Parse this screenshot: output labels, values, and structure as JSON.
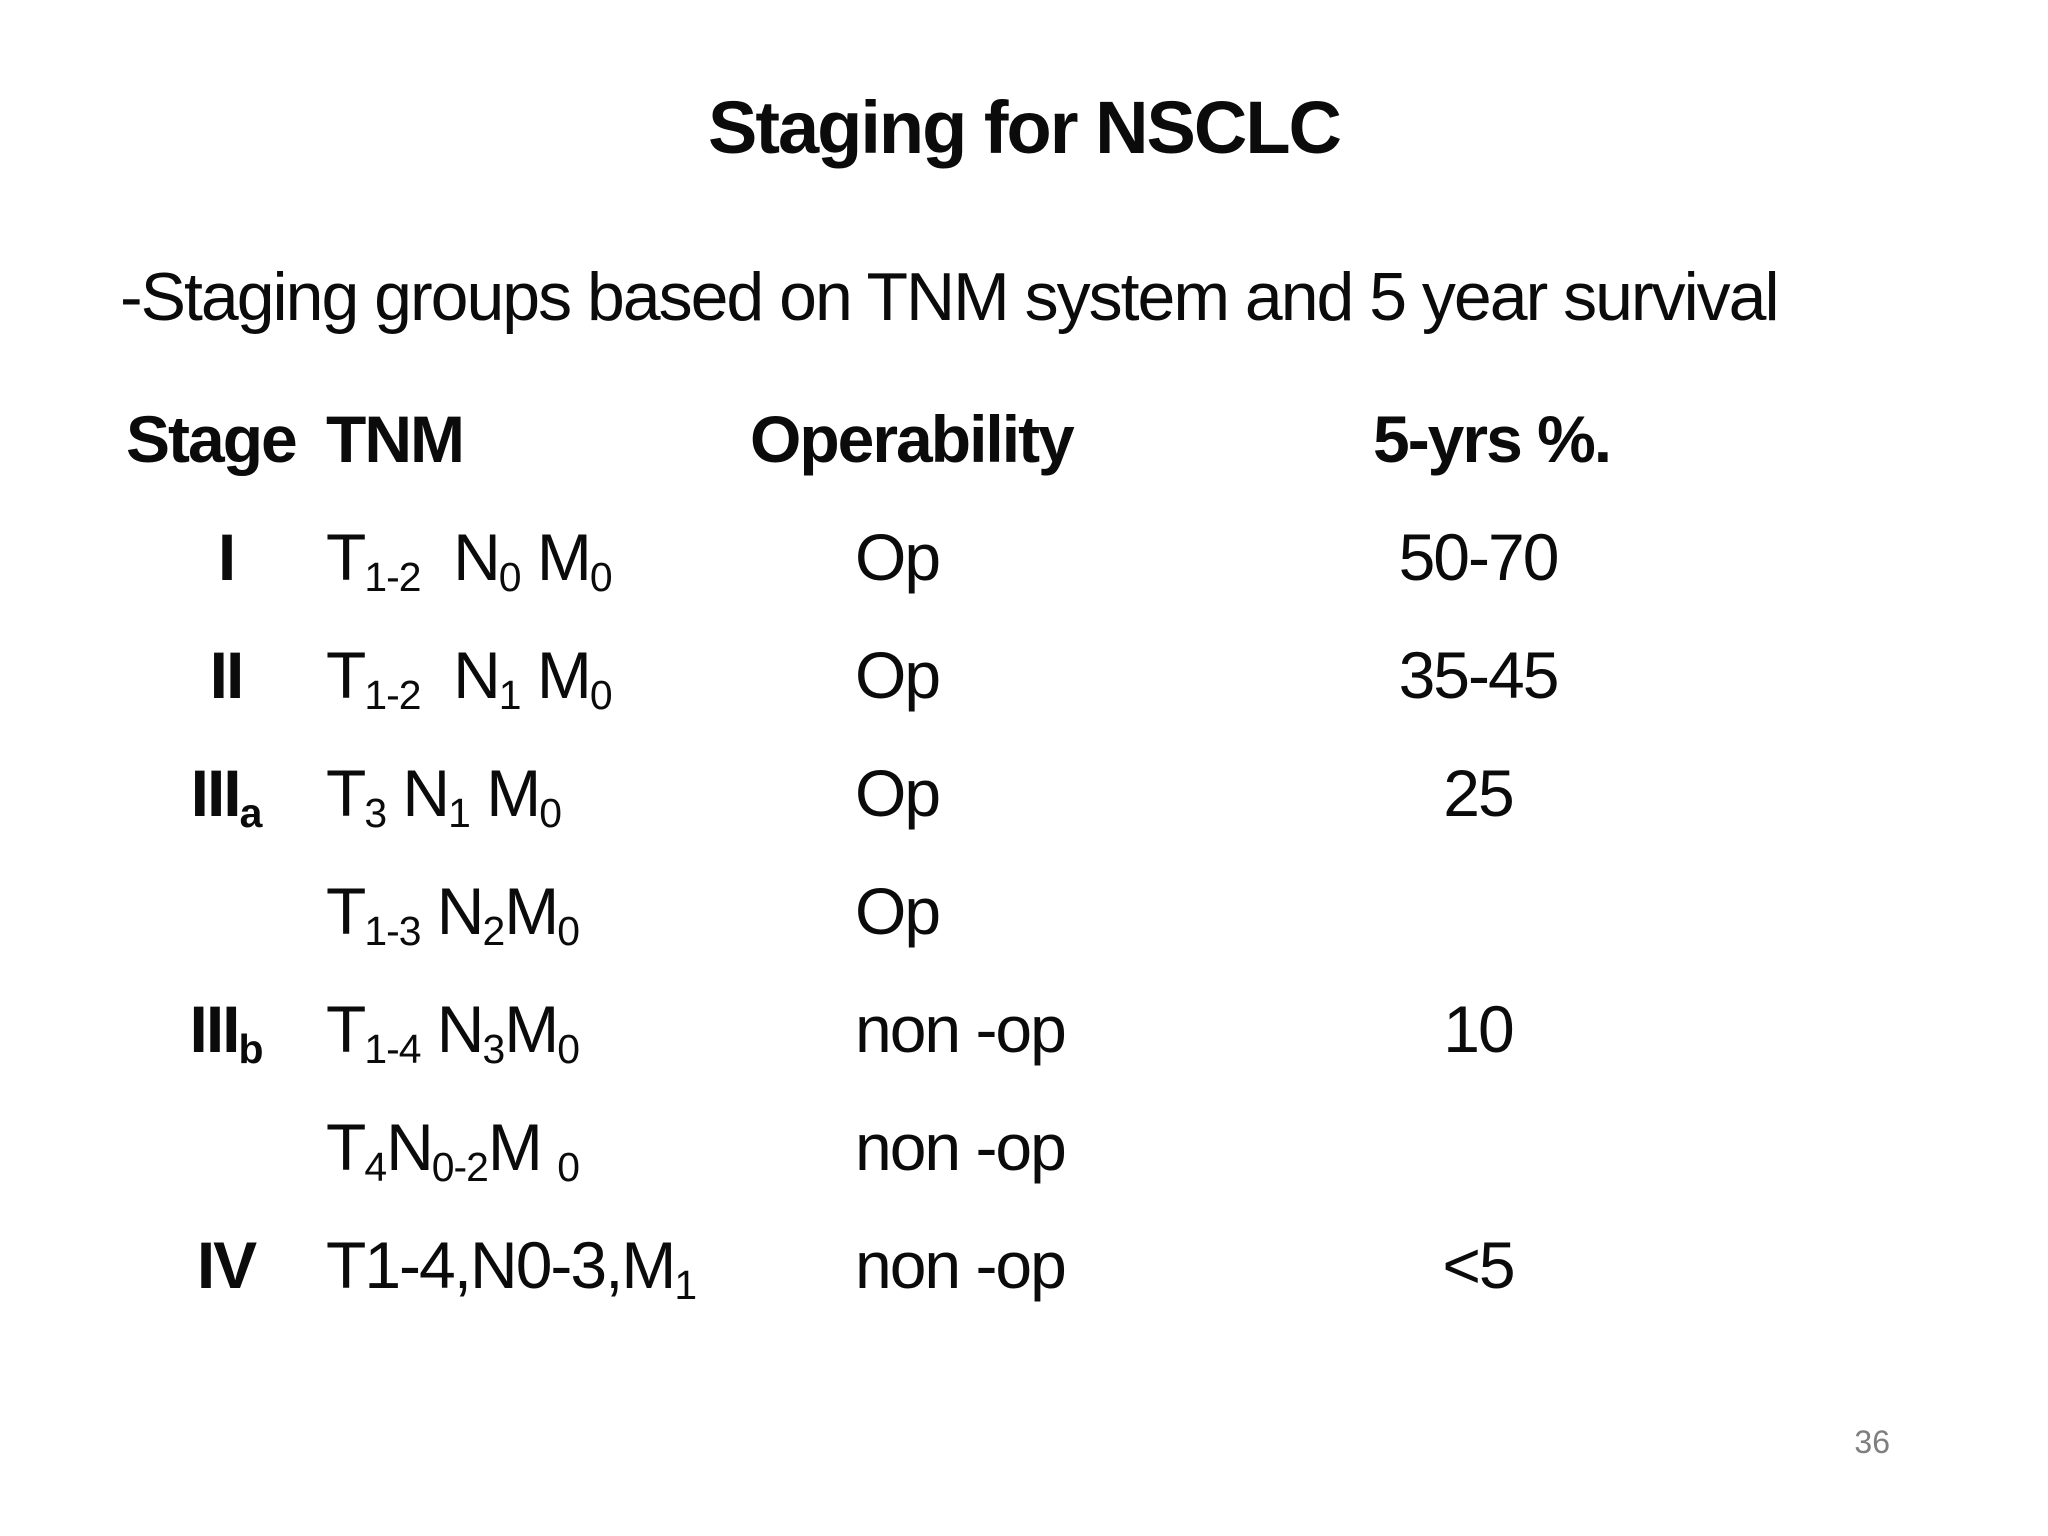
{
  "slide": {
    "title": "Staging for NSCLC",
    "subtitle": "-Staging groups based on TNM system and 5 year survival",
    "page_number": "36"
  },
  "colors": {
    "background": "#ffffff",
    "text": "#0b0b0b",
    "page_number": "#7f7f7f"
  },
  "table": {
    "headers": [
      "Stage",
      "TNM",
      "Operability",
      "5-yrs %."
    ],
    "rows": [
      {
        "stage": [
          {
            "t": "I"
          }
        ],
        "tnm": [
          {
            "t": "T"
          },
          {
            "s": "1-2"
          },
          {
            "t": "  N"
          },
          {
            "s": "0"
          },
          {
            "t": " M"
          },
          {
            "s": "0"
          }
        ],
        "operability": "Op",
        "survival": "50-70"
      },
      {
        "stage": [
          {
            "t": "II"
          }
        ],
        "tnm": [
          {
            "t": "T"
          },
          {
            "s": "1-2"
          },
          {
            "t": "  N"
          },
          {
            "s": "1"
          },
          {
            "t": " M"
          },
          {
            "s": "0"
          }
        ],
        "operability": "Op",
        "survival": "35-45"
      },
      {
        "stage": [
          {
            "t": "III"
          },
          {
            "s": "a"
          }
        ],
        "tnm": [
          {
            "t": "T"
          },
          {
            "s": "3"
          },
          {
            "t": " N"
          },
          {
            "s": "1"
          },
          {
            "t": " M"
          },
          {
            "s": "0"
          }
        ],
        "operability": "Op",
        "survival": "25"
      },
      {
        "stage": [],
        "tnm": [
          {
            "t": "T"
          },
          {
            "s": "1-3"
          },
          {
            "t": " N"
          },
          {
            "s": "2"
          },
          {
            "t": "M"
          },
          {
            "s": "0"
          }
        ],
        "operability": "Op",
        "survival": ""
      },
      {
        "stage": [
          {
            "t": "III"
          },
          {
            "s": "b"
          }
        ],
        "tnm": [
          {
            "t": "T"
          },
          {
            "s": "1-4"
          },
          {
            "t": " N"
          },
          {
            "s": "3"
          },
          {
            "t": "M"
          },
          {
            "s": "0"
          }
        ],
        "operability": "non -op",
        "survival": "10"
      },
      {
        "stage": [],
        "tnm": [
          {
            "t": "T"
          },
          {
            "s": "4"
          },
          {
            "t": "N"
          },
          {
            "s": "0-2"
          },
          {
            "t": "M "
          },
          {
            "s": "0"
          }
        ],
        "operability": "non -op",
        "survival": ""
      },
      {
        "stage": [
          {
            "t": "IV"
          }
        ],
        "tnm": [
          {
            "t": "T1-4,N0-3,M"
          },
          {
            "s": "1"
          }
        ],
        "operability": "non -op",
        "survival": "<5"
      }
    ]
  }
}
